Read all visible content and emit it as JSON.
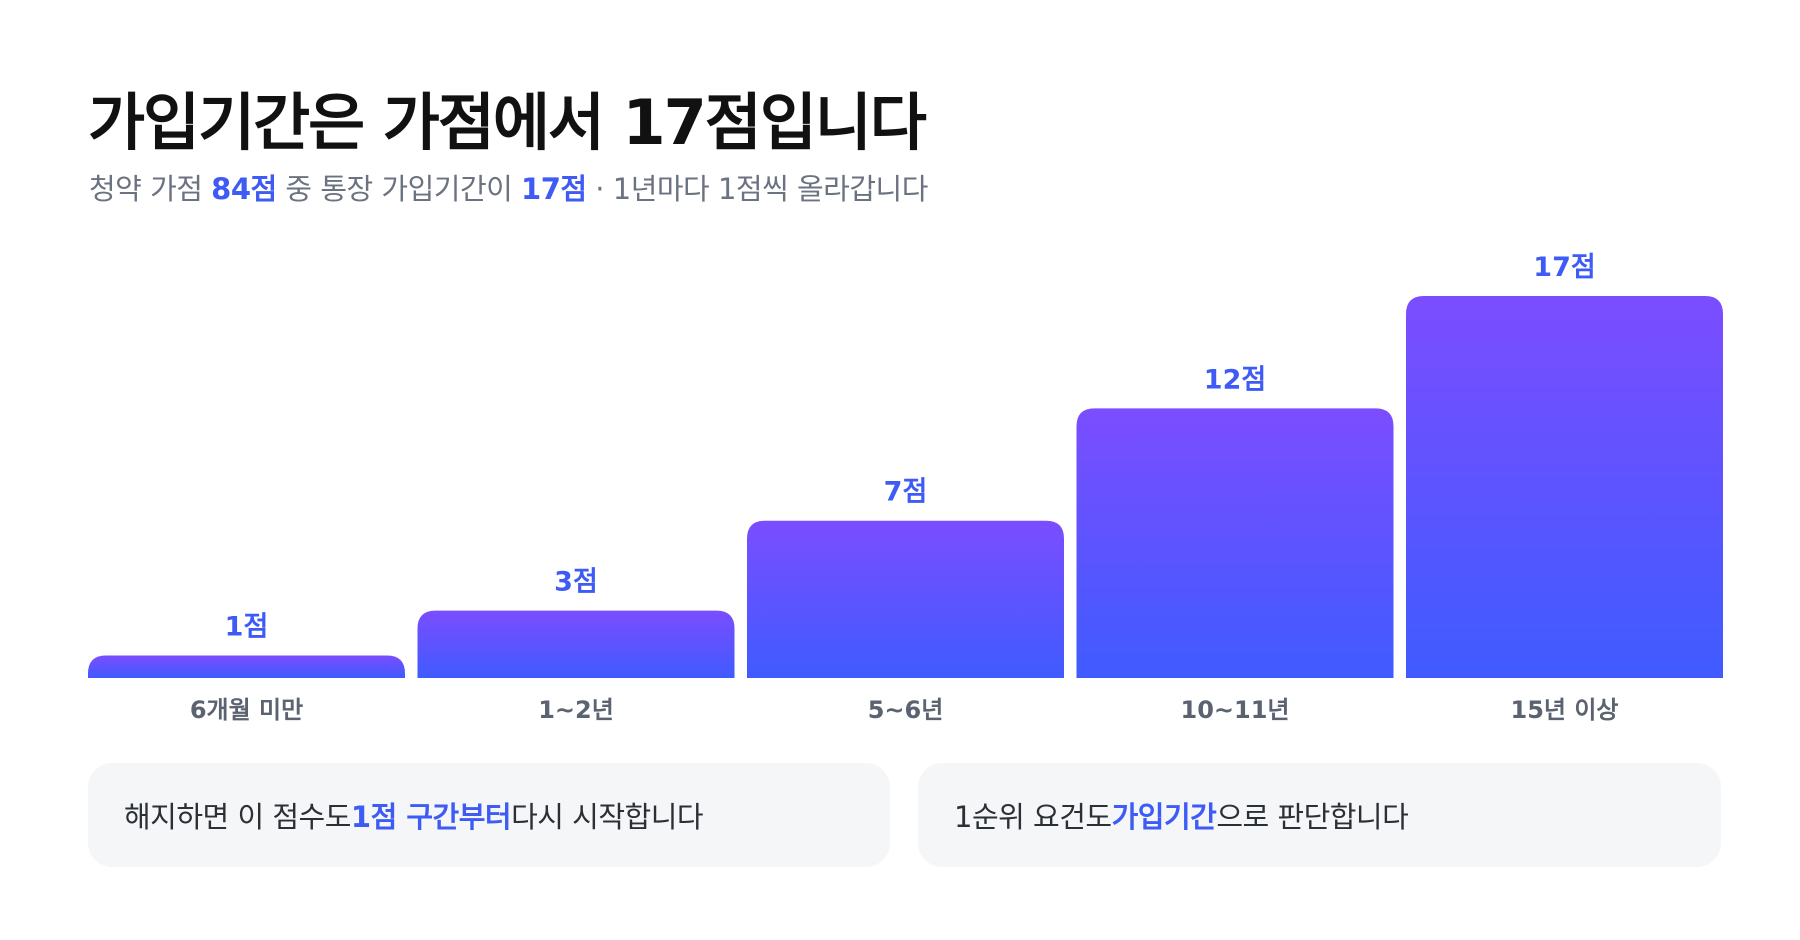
{
  "title": "가입기간은 가점에서 17점입니다",
  "subtitle": {
    "part1": "청약 가점 ",
    "hl1": "84점",
    "part2": " 중 통장 가입기간이 ",
    "hl2": "17점",
    "part3": " · 1년마다 1점씩 올라갑니다"
  },
  "colors": {
    "accent": "#3f5bf6",
    "bar_top": "#7b4dff",
    "bar_bottom": "#3f5bff",
    "callout_bg": "#f5f6f8"
  },
  "chart_data": {
    "type": "bar",
    "categories": [
      "6개월 미만",
      "1~2년",
      "5~6년",
      "10~11년",
      "15년 이상"
    ],
    "values": [
      1,
      3,
      7,
      12,
      17
    ],
    "value_labels": [
      "1점",
      "3점",
      "7점",
      "12점",
      "17점"
    ],
    "ylim": [
      0,
      17
    ],
    "grid": false
  },
  "callouts": [
    {
      "before": "해지하면 이 점수도 ",
      "highlight": "1점 구간부터",
      "after": " 다시 시작합니다"
    },
    {
      "before": "1순위 요건도 ",
      "highlight": "가입기간",
      "after": "으로 판단합니다"
    }
  ]
}
